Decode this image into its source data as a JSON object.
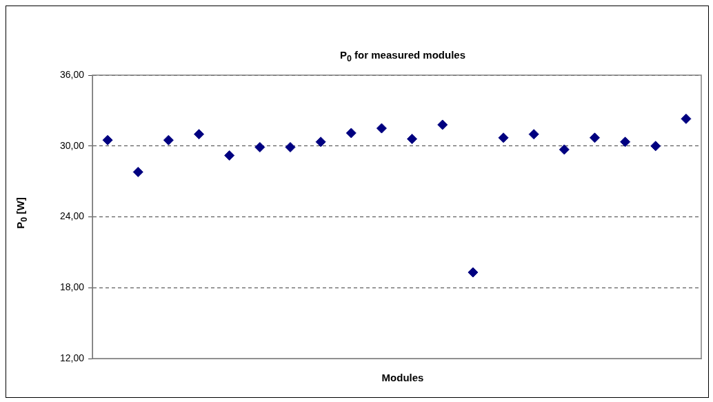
{
  "chart_data": {
    "type": "scatter",
    "title": "P$_{0}$ for measured modules",
    "xlabel": "Modules",
    "ylabel": "P$_{0}$ [W]",
    "categories": [
      null,
      null,
      null,
      null,
      null,
      null,
      null,
      null,
      null,
      null,
      null,
      null,
      null,
      null,
      null,
      null,
      null,
      null,
      null,
      null
    ],
    "series": [
      {
        "color": "#000080",
        "values": [
          30.5,
          27.8,
          30.5,
          31.0,
          29.2,
          29.9,
          29.9,
          30.35,
          31.1,
          31.5,
          30.6,
          31.8,
          19.3,
          30.7,
          31.0,
          29.7,
          30.7,
          30.35,
          30.0,
          32.3
        ]
      }
    ],
    "ylim": [
      12,
      36
    ],
    "yticks": [
      {
        "value": 12,
        "label": "12,00"
      },
      {
        "value": 18,
        "label": "18,00"
      },
      {
        "value": 24,
        "label": "24,00"
      },
      {
        "value": 30,
        "label": "30,00"
      },
      {
        "value": 36,
        "label": "36,00"
      }
    ],
    "grid": "y",
    "line_style": "dashed",
    "marker": "diamond",
    "legend": false,
    "tick_labels": "y"
  }
}
